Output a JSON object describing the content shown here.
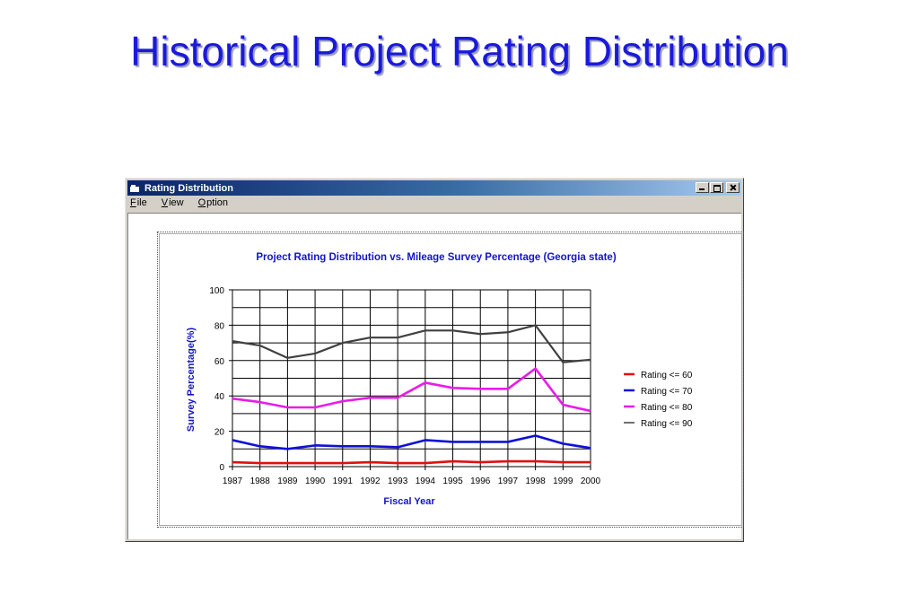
{
  "slide": {
    "title": "Historical Project Rating Distribution"
  },
  "window": {
    "title": "Rating Distribution",
    "menu": [
      {
        "accel": "F",
        "rest": "ile"
      },
      {
        "accel": "V",
        "rest": "iew"
      },
      {
        "accel": "O",
        "rest": "ption"
      }
    ]
  },
  "colors": {
    "title_blue": "#1a1adb",
    "chart_text_blue": "#1414c8",
    "titlebar": "#0a246a"
  },
  "chart_data": {
    "type": "line",
    "title": "Project Rating Distribution vs. Mileage Survey Percentage (Georgia state)",
    "xlabel": "Fiscal Year",
    "ylabel": "Survey Percentage(%)",
    "ylim": [
      0,
      100
    ],
    "yticks": [
      0,
      20,
      40,
      60,
      80,
      100
    ],
    "grid": true,
    "legend_position": "right",
    "categories": [
      "1987",
      "1988",
      "1989",
      "1990",
      "1991",
      "1992",
      "1993",
      "1994",
      "1995",
      "1996",
      "1997",
      "1998",
      "1999",
      "2000"
    ],
    "series": [
      {
        "name": "Rating <= 60",
        "color": "#e01010",
        "values": [
          2.5,
          2,
          2,
          2,
          2,
          2.5,
          2,
          2,
          3,
          2.5,
          3,
          3,
          2.5,
          2.5
        ]
      },
      {
        "name": "Rating <= 70",
        "color": "#1010d8",
        "values": [
          15,
          11.5,
          10,
          12,
          11.5,
          11.5,
          11,
          15,
          14,
          14,
          14,
          17.5,
          13,
          10.5
        ]
      },
      {
        "name": "Rating <= 80",
        "color": "#e81ce8",
        "values": [
          38.5,
          36.5,
          33.5,
          33.5,
          37,
          39,
          39,
          47.5,
          44.5,
          44,
          44,
          55.5,
          35,
          31.5
        ]
      },
      {
        "name": "Rating <= 90",
        "color": "#404040",
        "values": [
          71,
          68.5,
          61.5,
          64,
          70,
          73,
          73,
          77,
          77,
          75,
          76,
          80,
          59,
          60.5
        ]
      }
    ]
  }
}
